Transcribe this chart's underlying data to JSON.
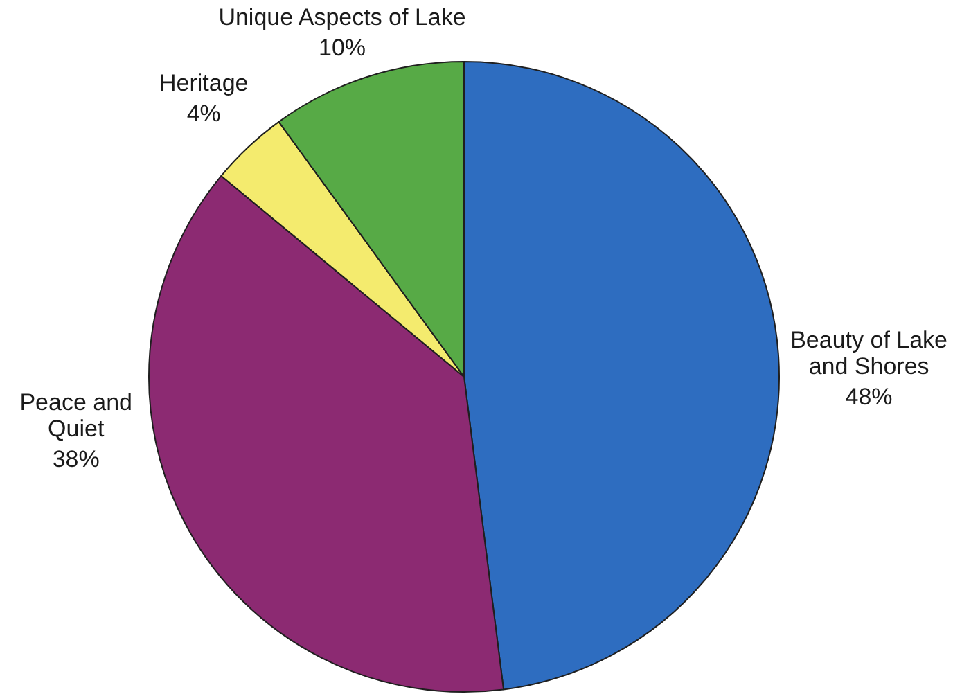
{
  "chart_data": {
    "type": "pie",
    "categories": [
      "Beauty of Lake\nand Shores",
      "Peace and\nQuiet",
      "Heritage",
      "Unique Aspects of Lake"
    ],
    "values": [
      48,
      38,
      4,
      10
    ],
    "colors": [
      "#2e6dc0",
      "#8c2a72",
      "#f4eb6e",
      "#57aa46"
    ],
    "value_labels": [
      "48%",
      "38%",
      "4%",
      "10%"
    ]
  }
}
